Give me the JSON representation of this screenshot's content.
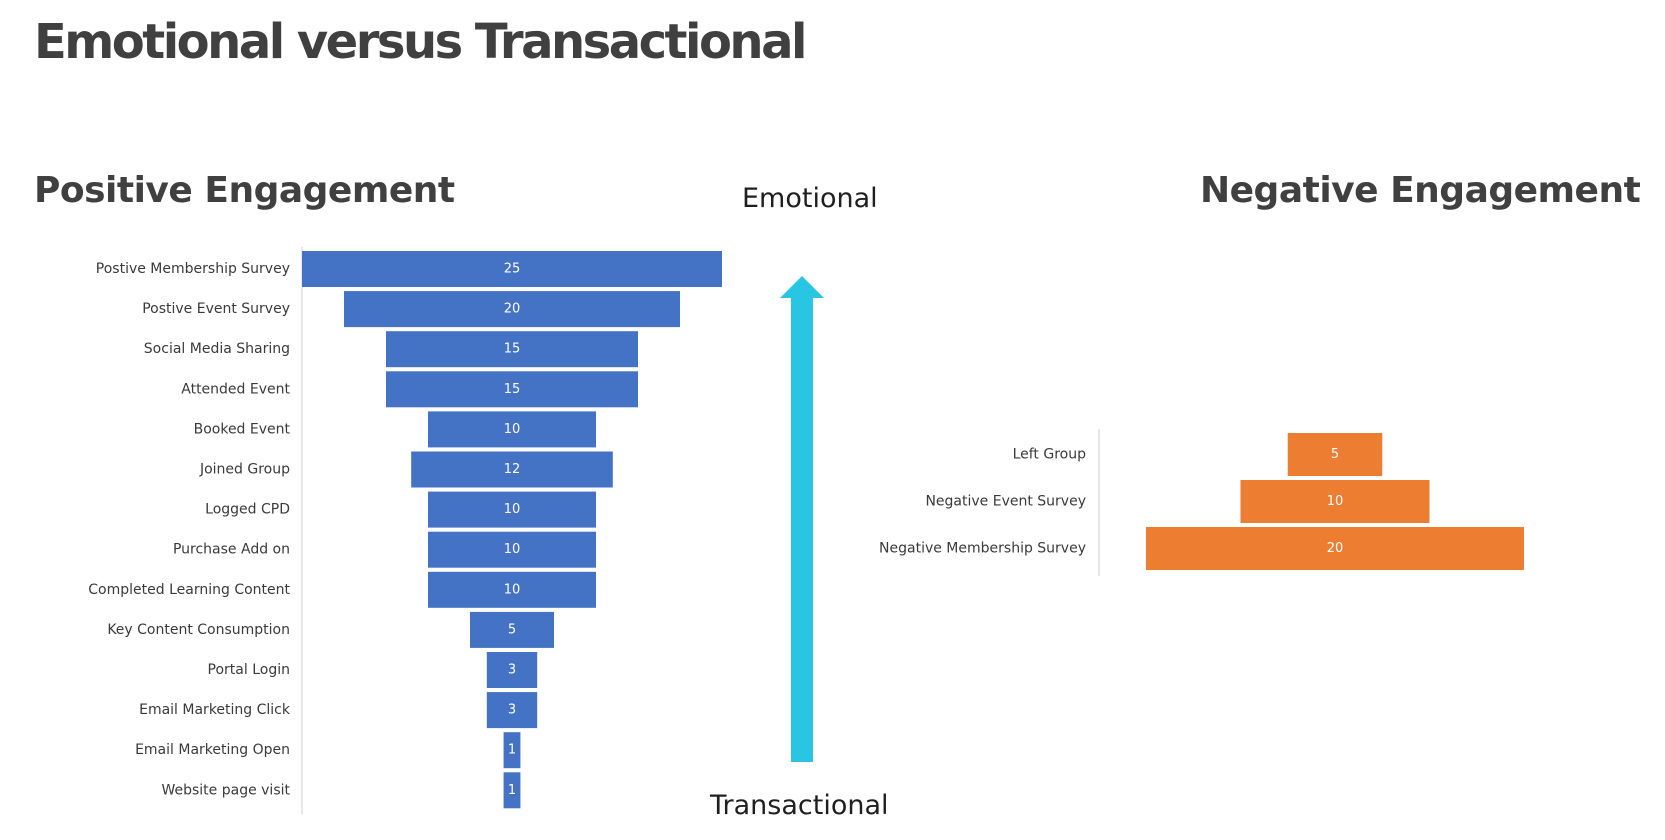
{
  "title": "Emotional versus Transactional",
  "axis_labels": {
    "top": "Emotional",
    "bottom": "Transactional"
  },
  "colors": {
    "positive": "#4472c4",
    "negative": "#ed7d31",
    "arrow": "#29c6e3",
    "title_text": "#404040"
  },
  "chart_data": [
    {
      "type": "bar",
      "orientation": "horizontal-funnel",
      "title": "Positive Engagement",
      "categories": [
        "Postive Membership Survey",
        "Postive Event Survey",
        "Social Media Sharing",
        "Attended Event",
        "Booked Event",
        "Joined Group",
        "Logged CPD",
        "Purchase Add on",
        "Completed Learning Content",
        "Key Content Consumption",
        "Portal Login",
        "Email Marketing Click",
        "Email Marketing Open",
        "Website  page visit"
      ],
      "values": [
        25,
        20,
        15,
        15,
        10,
        12,
        10,
        10,
        10,
        5,
        3,
        3,
        1,
        1
      ],
      "color": "#4472c4"
    },
    {
      "type": "bar",
      "orientation": "horizontal-funnel",
      "title": "Negative Engagement",
      "categories": [
        "Left Group",
        "Negative Event Survey",
        "Negative Membership Survey"
      ],
      "values": [
        5,
        10,
        20
      ],
      "color": "#ed7d31"
    }
  ]
}
